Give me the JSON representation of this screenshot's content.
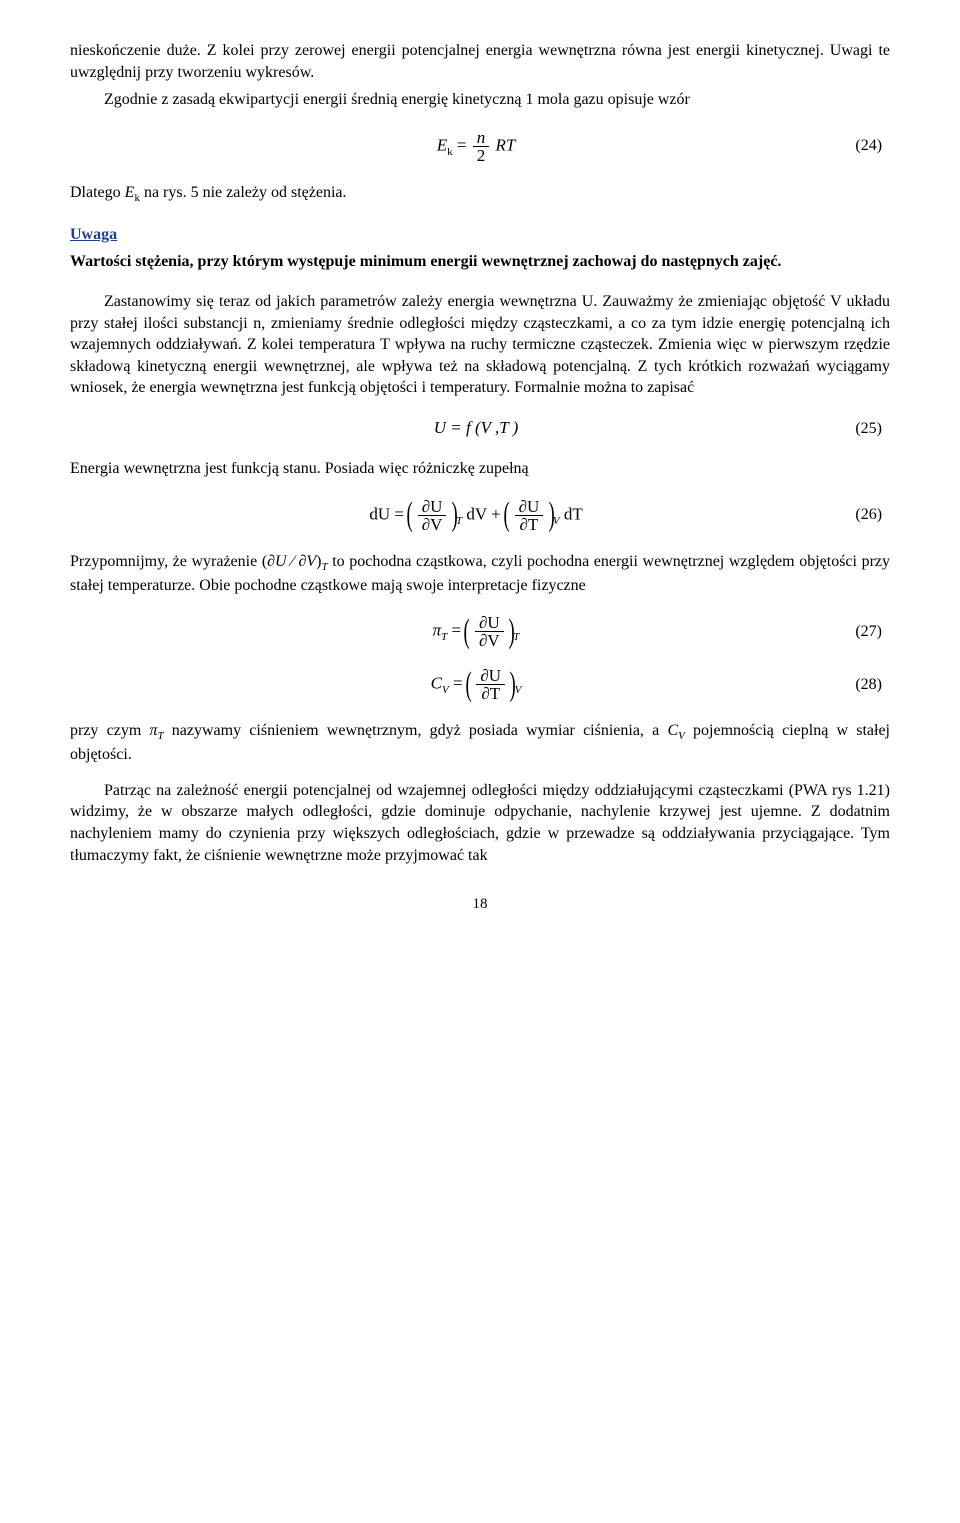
{
  "page_number": "18",
  "p1": "nieskończenie duże. Z kolei przy zerowej energii potencjalnej energia wewnętrzna równa jest energii kinetycznej. Uwagi te uwzględnij przy tworzeniu wykresów.",
  "p2": "Zgodnie z zasadą ekwipartycji energii średnią energię kinetyczną 1 mola gazu opisuje wzór",
  "eq24": {
    "lhs": "E",
    "lhs_sub": "k",
    "rhs_num": "n",
    "rhs_den": "2",
    "rhs_tail": "RT",
    "num": "(24)"
  },
  "p3_a": "Dlatego ",
  "p3_E": "E",
  "p3_sub": "k",
  "p3_b": " na rys. 5 nie zależy od stężenia.",
  "uwaga_head": "Uwaga",
  "uwaga_body": "Wartości stężenia, przy którym występuje minimum energii wewnętrznej zachowaj do następnych zajęć.",
  "p4": "Zastanowimy się teraz od jakich parametrów zależy energia wewnętrzna U. Zauważmy że zmieniając objętość V układu przy stałej ilości substancji n, zmieniamy średnie odległości między cząsteczkami, a co za tym idzie energię potencjalną ich wzajemnych oddziaływań. Z kolei temperatura T wpływa na ruchy termiczne cząsteczek. Zmienia więc w pierwszym rzędzie składową kinetyczną energii wewnętrznej, ale wpływa też na składową potencjalną. Z tych krótkich rozważań wyciągamy wniosek, że energia wewnętrzna jest funkcją objętości i temperatury. Formalnie można to zapisać",
  "eq25": {
    "body": "U = f (V ,T )",
    "num": "(25)"
  },
  "p5": "Energia wewnętrzna jest funkcją stanu. Posiada więc różniczkę zupełną",
  "eq26": {
    "num": "(26)"
  },
  "p6_a": "Przypomnijmy, że wyrażenie ",
  "p6_b": " to pochodna cząstkowa, czyli pochodna energii wewnętrznej względem objętości przy stałej temperaturze. Obie pochodne cząstkowe mają swoje interpretacje fizyczne",
  "eq27": {
    "num": "(27)"
  },
  "eq28": {
    "num": "(28)"
  },
  "p7_a": "przy czym ",
  "p7_b": " nazywamy ciśnieniem wewnętrznym, gdyż posiada wymiar ciśnienia, a ",
  "p7_c": " pojemnością cieplną w stałej objętości.",
  "p8": "Patrząc na zależność energii potencjalnej od wzajemnej odległości między oddziałującymi cząsteczkami (PWA rys 1.21) widzimy, że w obszarze małych odległości, gdzie dominuje odpychanie, nachylenie krzywej jest ujemne. Z dodatnim nachyleniem mamy do czynienia przy większych odległościach, gdzie w przewadze są oddziaływania przyciągające. Tym tłumaczymy fakt, że ciśnienie wewnętrzne może przyjmować tak",
  "inline": {
    "pi": "π",
    "T": "T",
    "C": "C",
    "V": "V",
    "dU": "dU",
    "dV": "dV",
    "dT": "dT",
    "partU": "∂U",
    "partV": "∂V",
    "partT": "∂T",
    "lpar": "(",
    "rpar": ")",
    "eq": " = ",
    "plus": " + ",
    "slash": "∂U ⁄ ∂V"
  }
}
